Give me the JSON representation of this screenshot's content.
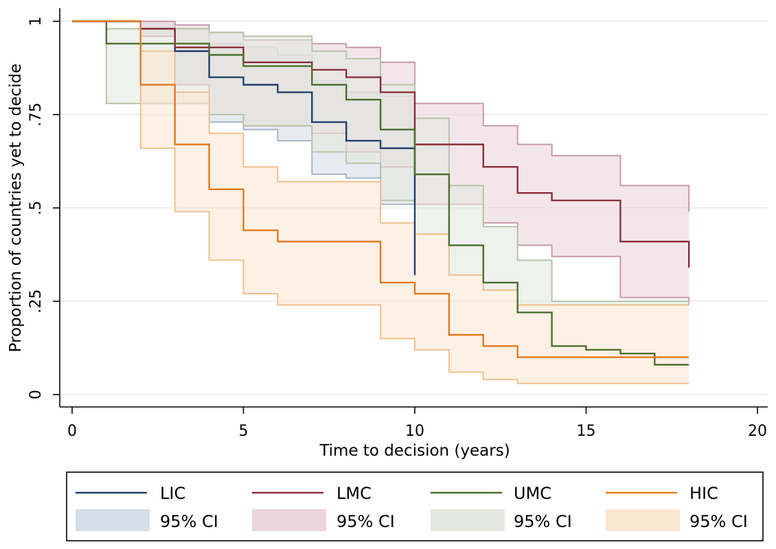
{
  "chart_data": {
    "type": "line",
    "step": true,
    "xlabel": "Time to decision (years)",
    "ylabel": "Proportion of countries yet to decide",
    "xlim": [
      0,
      20
    ],
    "ylim": [
      0,
      1
    ],
    "xticks": [
      0,
      5,
      10,
      15,
      20
    ],
    "yticks": [
      0,
      0.25,
      0.5,
      0.75,
      1
    ],
    "ytick_labels": [
      "0",
      ".25",
      ".5",
      ".75",
      "1"
    ],
    "grid": "horizontal",
    "legend_position": "bottom",
    "series": [
      {
        "name": "LIC",
        "color": "#1f3f6a",
        "ci_fill": "#d6dee7",
        "ci_edge": "#a9b5c5",
        "x": [
          0,
          2,
          3,
          4,
          5,
          6,
          7,
          8,
          9,
          10,
          10
        ],
        "y": [
          1.0,
          0.98,
          0.92,
          0.85,
          0.83,
          0.81,
          0.73,
          0.68,
          0.66,
          0.66,
          0.32
        ],
        "ci_lower": [
          1.0,
          0.96,
          0.83,
          0.73,
          0.71,
          0.68,
          0.59,
          0.58,
          0.51,
          0.51,
          0.51
        ],
        "ci_upper": [
          1.0,
          1.0,
          0.98,
          0.94,
          0.93,
          0.91,
          0.84,
          0.81,
          0.8,
          0.8,
          0.8
        ]
      },
      {
        "name": "LMC",
        "color": "#8c2d3a",
        "ci_fill": "#ead6dc",
        "ci_edge": "#c79aa5",
        "x": [
          0,
          2,
          3,
          4,
          5,
          6,
          7,
          8,
          9,
          10,
          12,
          13,
          14,
          16,
          18
        ],
        "y": [
          1.0,
          0.98,
          0.93,
          0.93,
          0.89,
          0.89,
          0.87,
          0.85,
          0.81,
          0.67,
          0.61,
          0.54,
          0.52,
          0.41,
          0.34
        ],
        "ci_lower": [
          1.0,
          0.96,
          0.83,
          0.75,
          0.72,
          0.72,
          0.7,
          0.65,
          0.61,
          0.51,
          0.46,
          0.4,
          0.37,
          0.26,
          0.24
        ],
        "ci_upper": [
          1.0,
          1.0,
          0.99,
          0.97,
          0.95,
          0.95,
          0.94,
          0.93,
          0.89,
          0.78,
          0.72,
          0.67,
          0.64,
          0.56,
          0.49
        ]
      },
      {
        "name": "UMC",
        "color": "#4a6f2c",
        "ci_fill": "#e3e8df",
        "ci_edge": "#b6c4a8",
        "x": [
          0,
          1,
          4,
          5,
          7,
          8,
          9,
          10,
          11,
          12,
          13,
          14,
          15,
          16,
          17,
          18
        ],
        "y": [
          1.0,
          0.94,
          0.91,
          0.88,
          0.83,
          0.79,
          0.71,
          0.59,
          0.4,
          0.3,
          0.22,
          0.13,
          0.12,
          0.11,
          0.08,
          0.08
        ],
        "ci_lower": [
          1.0,
          0.78,
          0.75,
          0.72,
          0.65,
          0.62,
          0.52,
          0.43,
          0.32,
          0.28,
          0.24,
          0.24,
          0.24,
          0.24,
          0.24,
          0.24
        ],
        "ci_upper": [
          1.0,
          0.98,
          0.97,
          0.96,
          0.92,
          0.9,
          0.83,
          0.74,
          0.56,
          0.45,
          0.36,
          0.25,
          0.25,
          0.25,
          0.25,
          0.25
        ]
      },
      {
        "name": "HIC",
        "color": "#e07b1f",
        "ci_fill": "#fbe6d2",
        "ci_edge": "#f0c08f",
        "x": [
          0,
          2,
          3,
          4,
          5,
          6,
          9,
          10,
          11,
          12,
          13,
          18
        ],
        "y": [
          1.0,
          0.83,
          0.67,
          0.55,
          0.44,
          0.41,
          0.3,
          0.27,
          0.16,
          0.13,
          0.1,
          0.1
        ],
        "ci_lower": [
          1.0,
          0.66,
          0.49,
          0.36,
          0.27,
          0.24,
          0.15,
          0.12,
          0.06,
          0.04,
          0.03,
          0.03
        ],
        "ci_upper": [
          1.0,
          0.92,
          0.81,
          0.7,
          0.61,
          0.57,
          0.46,
          0.43,
          0.32,
          0.28,
          0.24,
          0.24
        ]
      }
    ],
    "legend": {
      "ci_label": "95% CI"
    }
  }
}
